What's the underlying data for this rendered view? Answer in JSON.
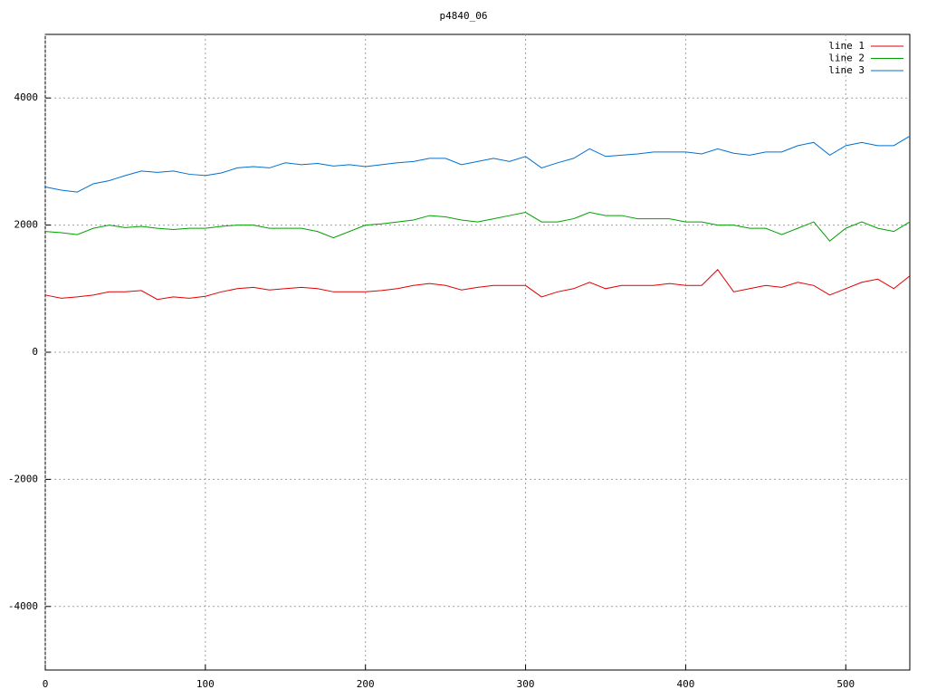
{
  "chart_data": {
    "type": "line",
    "title": "p4840_06",
    "x": [
      0,
      10,
      20,
      30,
      40,
      50,
      60,
      70,
      80,
      90,
      100,
      110,
      120,
      130,
      140,
      150,
      160,
      170,
      180,
      190,
      200,
      210,
      220,
      230,
      240,
      250,
      260,
      270,
      280,
      290,
      300,
      310,
      320,
      330,
      340,
      350,
      360,
      370,
      380,
      390,
      400,
      410,
      420,
      430,
      440,
      450,
      460,
      470,
      480,
      490,
      500,
      510,
      520,
      530,
      540
    ],
    "series": [
      {
        "name": "line 1",
        "color": "#e00000",
        "values": [
          900,
          850,
          870,
          900,
          950,
          950,
          970,
          830,
          870,
          850,
          880,
          950,
          1000,
          1020,
          980,
          1000,
          1020,
          1000,
          950,
          950,
          950,
          970,
          1000,
          1050,
          1080,
          1050,
          980,
          1020,
          1050,
          1050,
          1050,
          870,
          950,
          1000,
          1100,
          1000,
          1050,
          1050,
          1050,
          1080,
          1050,
          1050,
          1300,
          950,
          1000,
          1050,
          1020,
          1100,
          1050,
          900,
          1000,
          1100,
          1150,
          1000,
          1200
        ]
      },
      {
        "name": "line 2",
        "color": "#00a000",
        "values": [
          1900,
          1880,
          1850,
          1950,
          2000,
          1960,
          1980,
          1950,
          1930,
          1950,
          1950,
          1980,
          2000,
          2000,
          1950,
          1950,
          1950,
          1900,
          1800,
          1900,
          2000,
          2020,
          2050,
          2080,
          2150,
          2130,
          2080,
          2050,
          2100,
          2150,
          2200,
          2050,
          2050,
          2100,
          2200,
          2150,
          2150,
          2100,
          2100,
          2100,
          2050,
          2050,
          2000,
          2000,
          1950,
          1950,
          1850,
          1950,
          2050,
          1750,
          1950,
          2050,
          1950,
          1900,
          2050
        ]
      },
      {
        "name": "line 3",
        "color": "#0070d0",
        "values": [
          2600,
          2550,
          2520,
          2650,
          2700,
          2780,
          2850,
          2830,
          2850,
          2800,
          2780,
          2820,
          2900,
          2920,
          2900,
          2980,
          2950,
          2970,
          2930,
          2950,
          2920,
          2950,
          2980,
          3000,
          3050,
          3050,
          2950,
          3000,
          3050,
          3000,
          3080,
          2900,
          2980,
          3050,
          3200,
          3080,
          3100,
          3120,
          3150,
          3150,
          3150,
          3120,
          3200,
          3130,
          3100,
          3150,
          3150,
          3250,
          3300,
          3100,
          3250,
          3300,
          3250,
          3250,
          3400
        ]
      }
    ],
    "xlim": [
      0,
      540
    ],
    "ylim": [
      -5000,
      5000
    ],
    "xticks": [
      0,
      100,
      200,
      300,
      400,
      500
    ],
    "yticks": [
      -4000,
      -2000,
      0,
      2000,
      4000
    ],
    "grid": true,
    "legend": "top-right"
  }
}
